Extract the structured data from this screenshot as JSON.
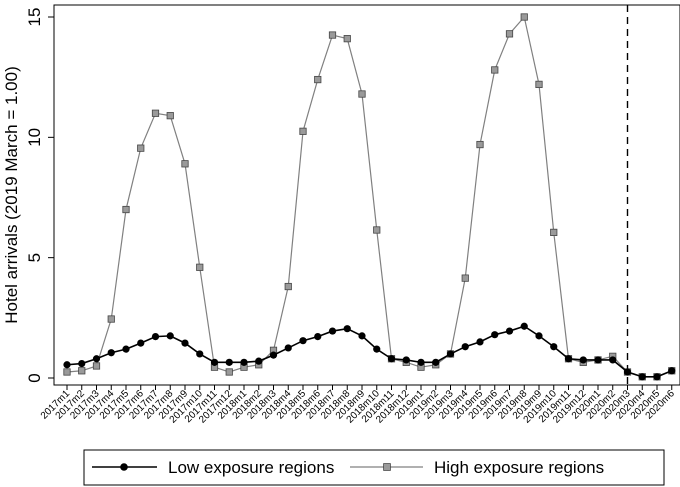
{
  "chart_data": {
    "type": "line",
    "title": "",
    "xlabel": "",
    "ylabel": "Hotel arrivals (2019 March = 1.00)",
    "ylim": [
      0,
      15
    ],
    "yticks": [
      0,
      5,
      10,
      15
    ],
    "grid": false,
    "legend_position": "bottom",
    "vline_at": "2020m3",
    "vline_style": "dashed",
    "categories": [
      "2017m1",
      "2017m2",
      "2017m3",
      "2017m4",
      "2017m5",
      "2017m6",
      "2017m7",
      "2017m8",
      "2017m9",
      "2017m10",
      "2017m11",
      "2017m12",
      "2018m1",
      "2018m2",
      "2018m3",
      "2018m4",
      "2018m5",
      "2018m6",
      "2018m7",
      "2018m8",
      "2018m9",
      "2018m10",
      "2018m11",
      "2018m12",
      "2019m1",
      "2019m2",
      "2019m3",
      "2019m4",
      "2019m5",
      "2019m6",
      "2019m7",
      "2019m8",
      "2019m9",
      "2019m10",
      "2019m11",
      "2019m12",
      "2020m1",
      "2020m2",
      "2020m3",
      "2020m4",
      "2020m5",
      "2020m6"
    ],
    "series": [
      {
        "name": "Low exposure regions",
        "color": "#000000",
        "marker": "circle",
        "values": [
          0.55,
          0.6,
          0.8,
          1.05,
          1.2,
          1.45,
          1.72,
          1.75,
          1.45,
          1.0,
          0.65,
          0.65,
          0.65,
          0.7,
          0.95,
          1.25,
          1.55,
          1.72,
          1.95,
          2.05,
          1.75,
          1.2,
          0.8,
          0.75,
          0.65,
          0.65,
          1.0,
          1.3,
          1.5,
          1.8,
          1.95,
          2.15,
          1.75,
          1.3,
          0.8,
          0.75,
          0.75,
          0.75,
          0.25,
          0.05,
          0.05,
          0.3
        ]
      },
      {
        "name": "High exposure regions",
        "color": "#808080",
        "marker": "square",
        "values": [
          0.25,
          0.3,
          0.5,
          2.45,
          7.0,
          9.55,
          11.0,
          10.9,
          8.9,
          4.6,
          0.45,
          0.25,
          0.45,
          0.55,
          1.15,
          3.8,
          10.25,
          12.4,
          14.25,
          14.1,
          11.8,
          6.15,
          0.8,
          0.65,
          0.45,
          0.55,
          1.0,
          4.15,
          9.7,
          12.8,
          14.3,
          15.0,
          12.2,
          6.05,
          0.8,
          0.65,
          0.75,
          0.9,
          0.25,
          0.05,
          0.05,
          0.3
        ]
      }
    ]
  }
}
